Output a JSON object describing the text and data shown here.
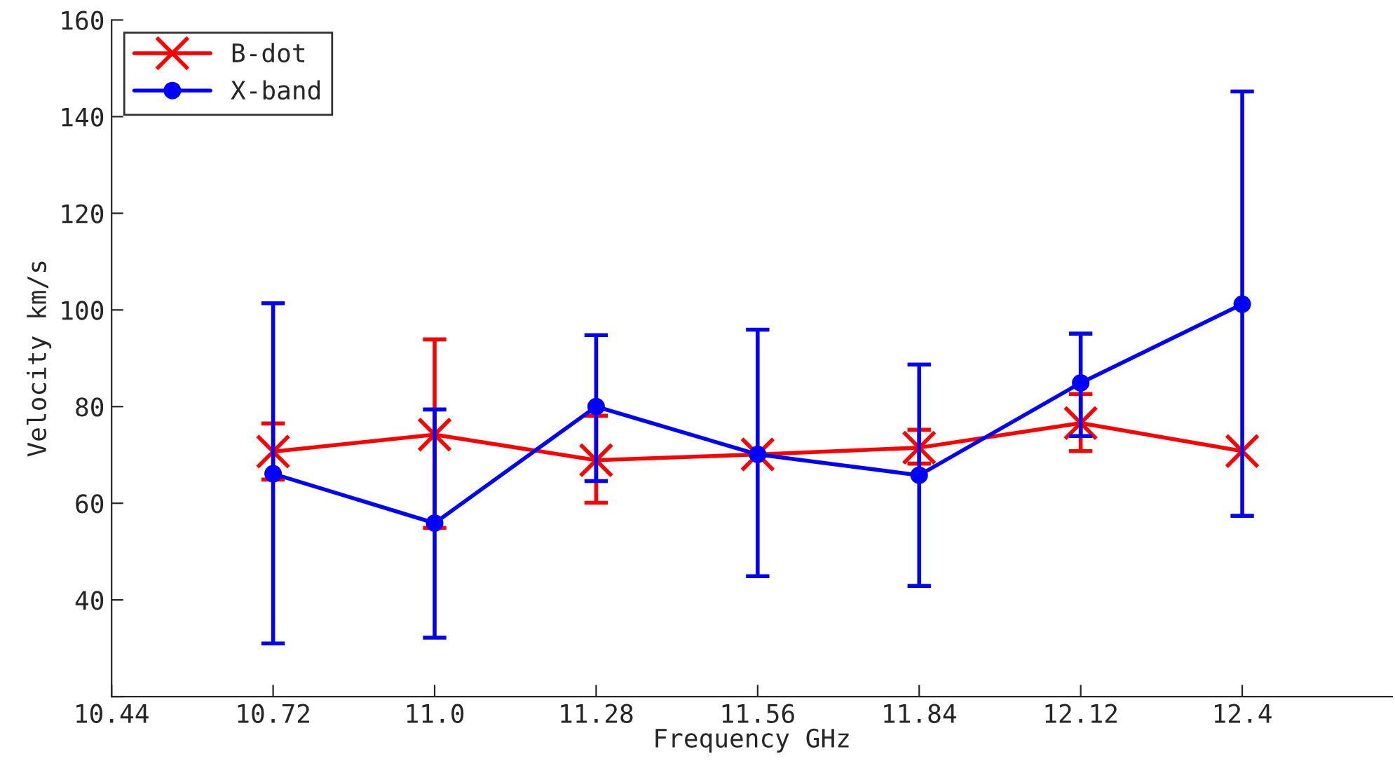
{
  "chart_data": {
    "type": "line",
    "xlabel": "Frequency GHz",
    "ylabel": "Velocity km/s",
    "x": [
      10.72,
      11.0,
      11.28,
      11.56,
      11.84,
      12.12,
      12.4
    ],
    "series": [
      {
        "name": "B-dot",
        "color": "#ff0000",
        "marker": "cross",
        "values": [
          70.7,
          74.2,
          68.9,
          70.1,
          71.5,
          76.6,
          70.8
        ],
        "errors": [
          [
            64.9,
            76.5
          ],
          [
            54.9,
            93.9
          ],
          [
            60.1,
            78.1
          ],
          null,
          [
            68.2,
            75.2
          ],
          [
            70.8,
            82.6
          ],
          null
        ]
      },
      {
        "name": "X-band",
        "color": "#0000ff",
        "marker": "circle",
        "values": [
          66.1,
          55.9,
          80.0,
          70.1,
          65.8,
          84.9,
          101.2
        ],
        "errors": [
          [
            31.0,
            101.4
          ],
          [
            32.2,
            79.4
          ],
          [
            64.6,
            94.8
          ],
          [
            44.9,
            95.9
          ],
          [
            42.9,
            88.7
          ],
          [
            73.9,
            95.1
          ],
          [
            57.4,
            145.2
          ]
        ]
      }
    ],
    "xlim": [
      10.44,
      12.66
    ],
    "xticks": [
      10.44,
      10.72,
      {
        "value": 11.0,
        "label": "11.0"
      },
      11.28,
      11.56,
      11.84,
      12.12,
      12.4
    ],
    "ylim": [
      20,
      160
    ],
    "yticks": [
      {
        "value": 20,
        "label": null
      },
      40,
      60,
      80,
      100,
      120,
      140,
      160
    ],
    "legend": "top left",
    "grid": false,
    "line_style": "solid"
  }
}
